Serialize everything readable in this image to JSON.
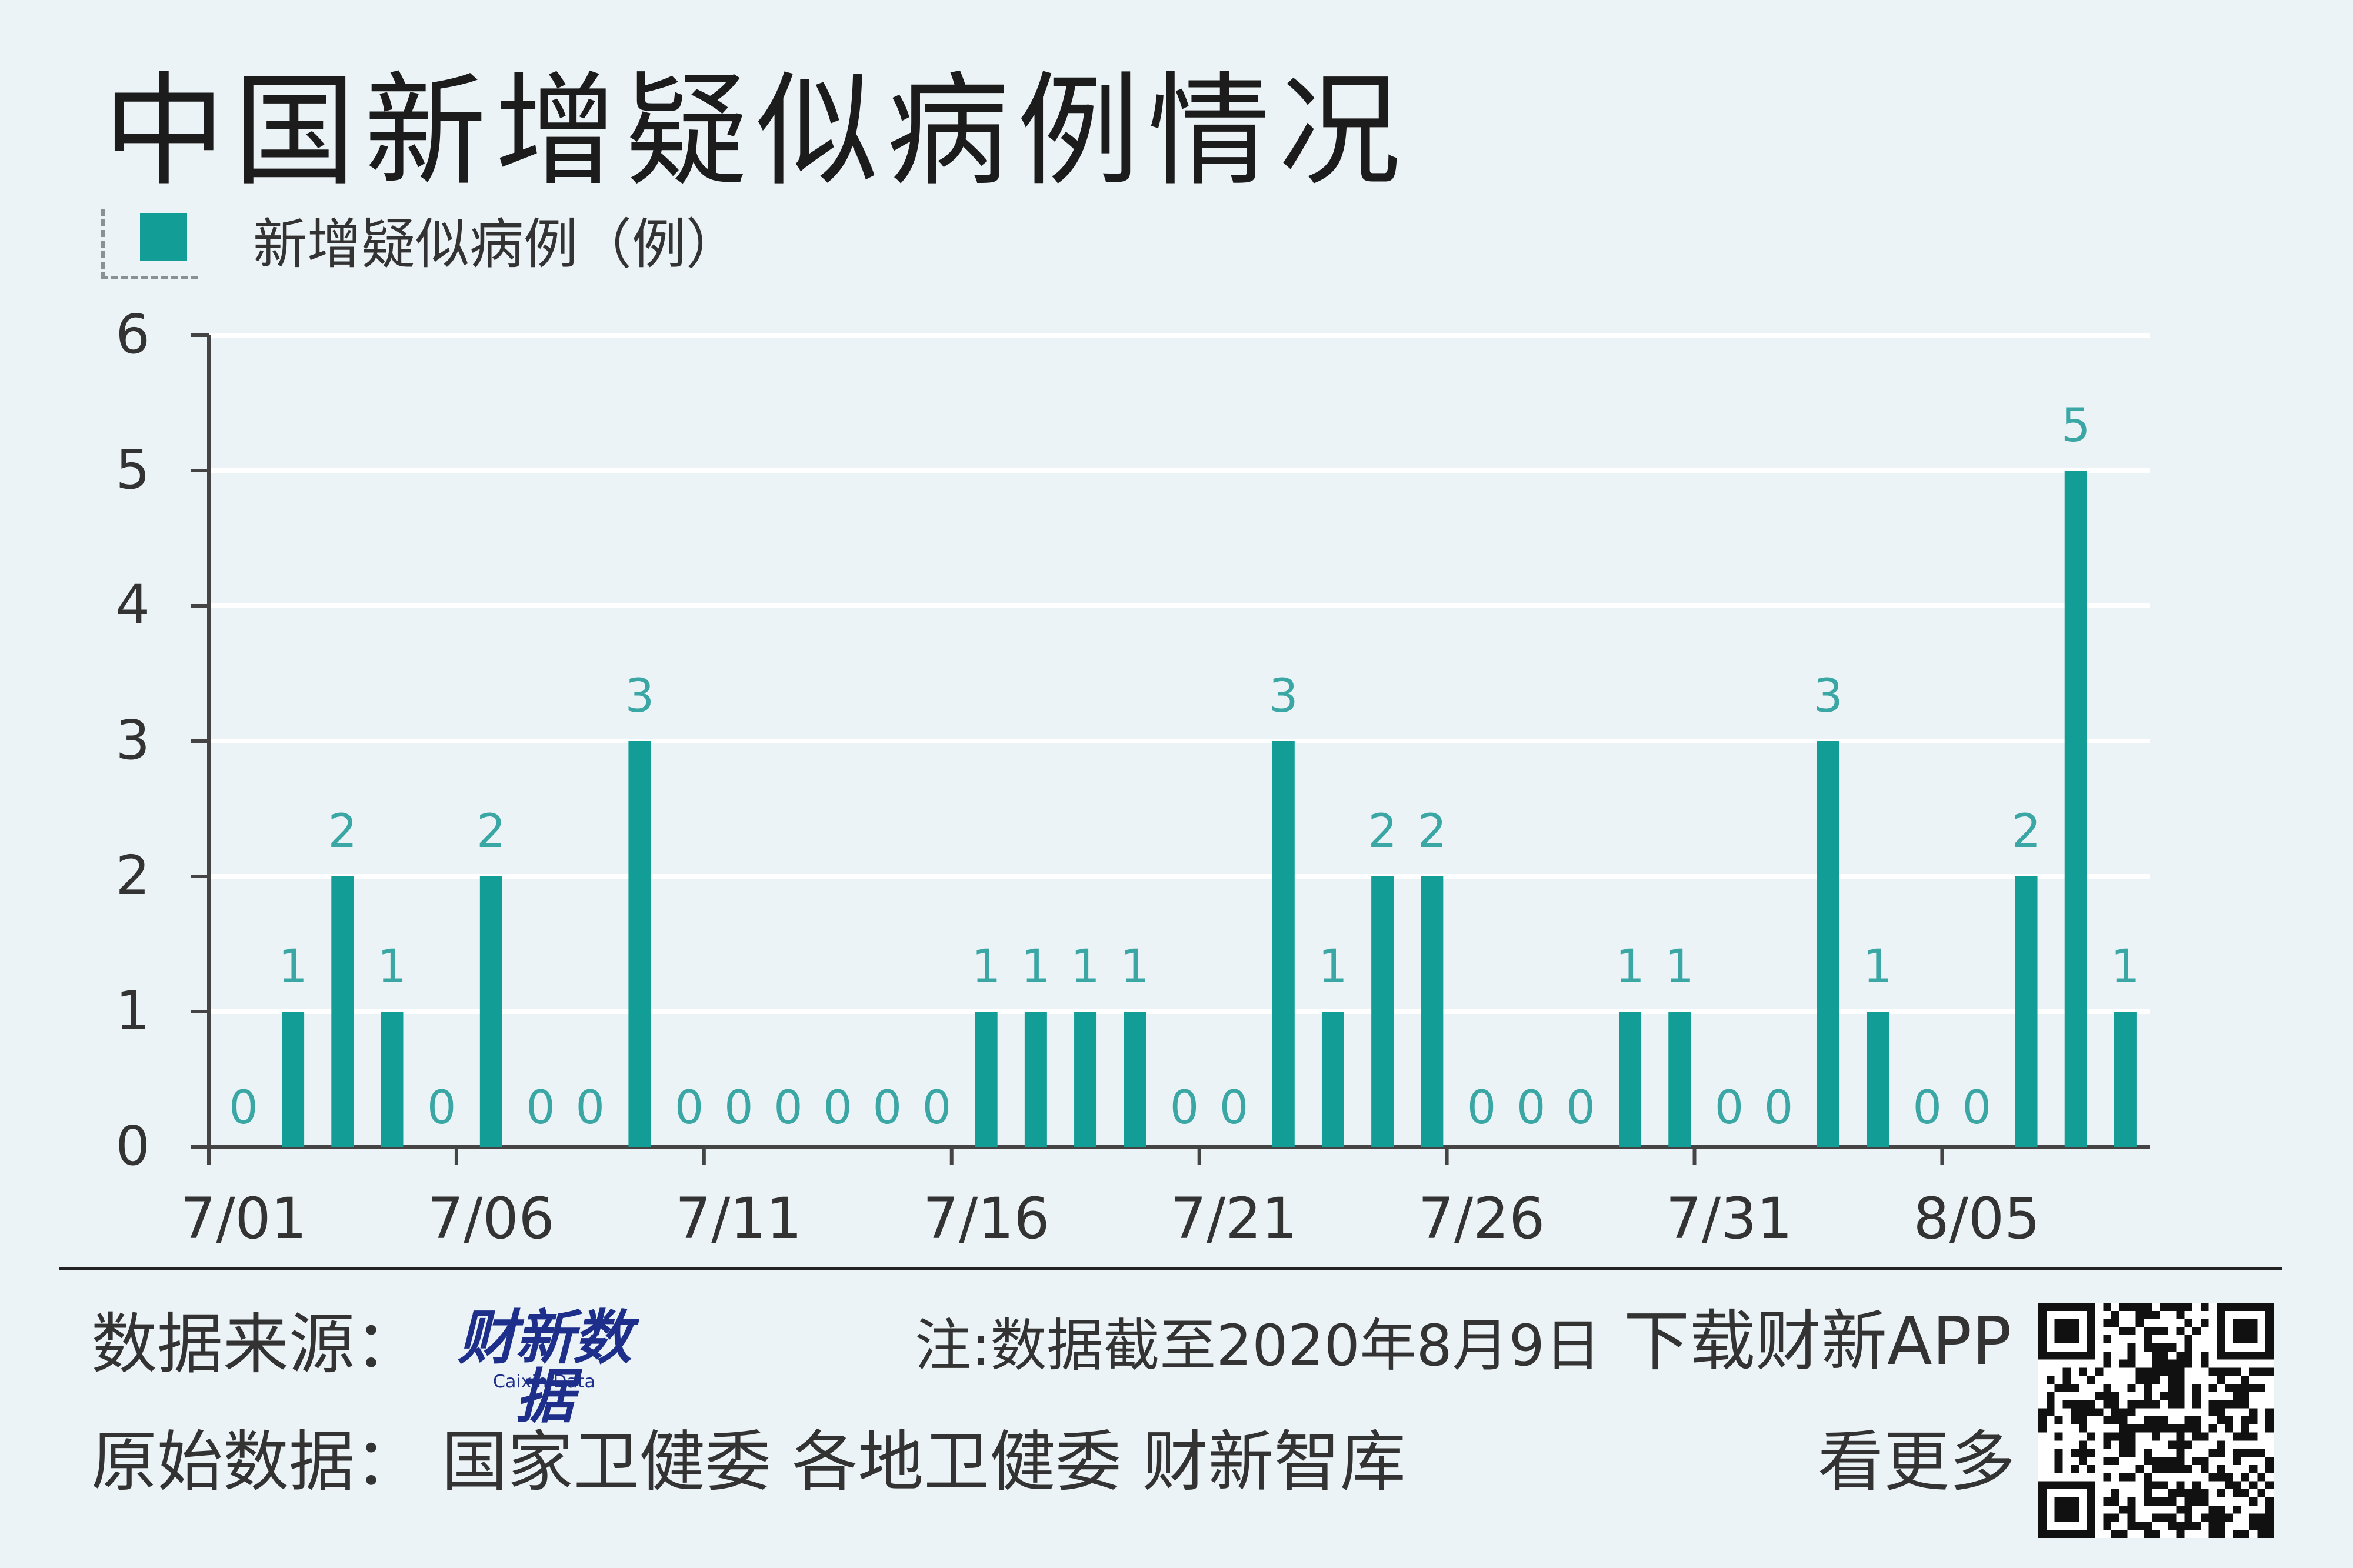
{
  "title": "中国新增疑似病例情况",
  "legend": {
    "label": "新增疑似病例（例）",
    "color": "#129d96"
  },
  "chart_data": {
    "type": "bar",
    "categories": [
      "7/01",
      "7/02",
      "7/03",
      "7/04",
      "7/05",
      "7/06",
      "7/07",
      "7/08",
      "7/09",
      "7/10",
      "7/11",
      "7/12",
      "7/13",
      "7/14",
      "7/15",
      "7/16",
      "7/17",
      "7/18",
      "7/19",
      "7/20",
      "7/21",
      "7/22",
      "7/23",
      "7/24",
      "7/25",
      "7/26",
      "7/27",
      "7/28",
      "7/29",
      "7/30",
      "7/31",
      "8/01",
      "8/02",
      "8/03",
      "8/04",
      "8/05",
      "8/06",
      "8/07",
      "8/08"
    ],
    "series": [
      {
        "name": "新增疑似病例（例）",
        "values": [
          0,
          1,
          2,
          1,
          0,
          2,
          0,
          0,
          3,
          0,
          0,
          0,
          0,
          0,
          0,
          1,
          1,
          1,
          1,
          0,
          0,
          3,
          1,
          2,
          2,
          0,
          0,
          0,
          1,
          1,
          0,
          0,
          3,
          1,
          0,
          0,
          2,
          5,
          1
        ]
      }
    ],
    "x_tick_labels": [
      "7/01",
      "7/06",
      "7/11",
      "7/16",
      "7/21",
      "7/26",
      "7/31",
      "8/05"
    ],
    "y_ticks": [
      0,
      1,
      2,
      3,
      4,
      5,
      6
    ],
    "ylim": [
      0,
      6
    ],
    "title": "中国新增疑似病例情况",
    "xlabel": "",
    "ylabel": "",
    "grid": "horizontal",
    "legend_position": "top-left",
    "bar_color": "#129d96",
    "label_color": "#3aa7a5"
  },
  "footer": {
    "source_label": "数据来源：",
    "source_logo_cn": "财新数据",
    "source_logo_en": "Caixin Data",
    "note": "注:数据截至2020年8月9日",
    "download": "下载财新APP",
    "origin": "原始数据：  国家卫健委  各地卫健委  财新智库",
    "more": "看更多",
    "qr_icon": "qr-code-icon"
  }
}
